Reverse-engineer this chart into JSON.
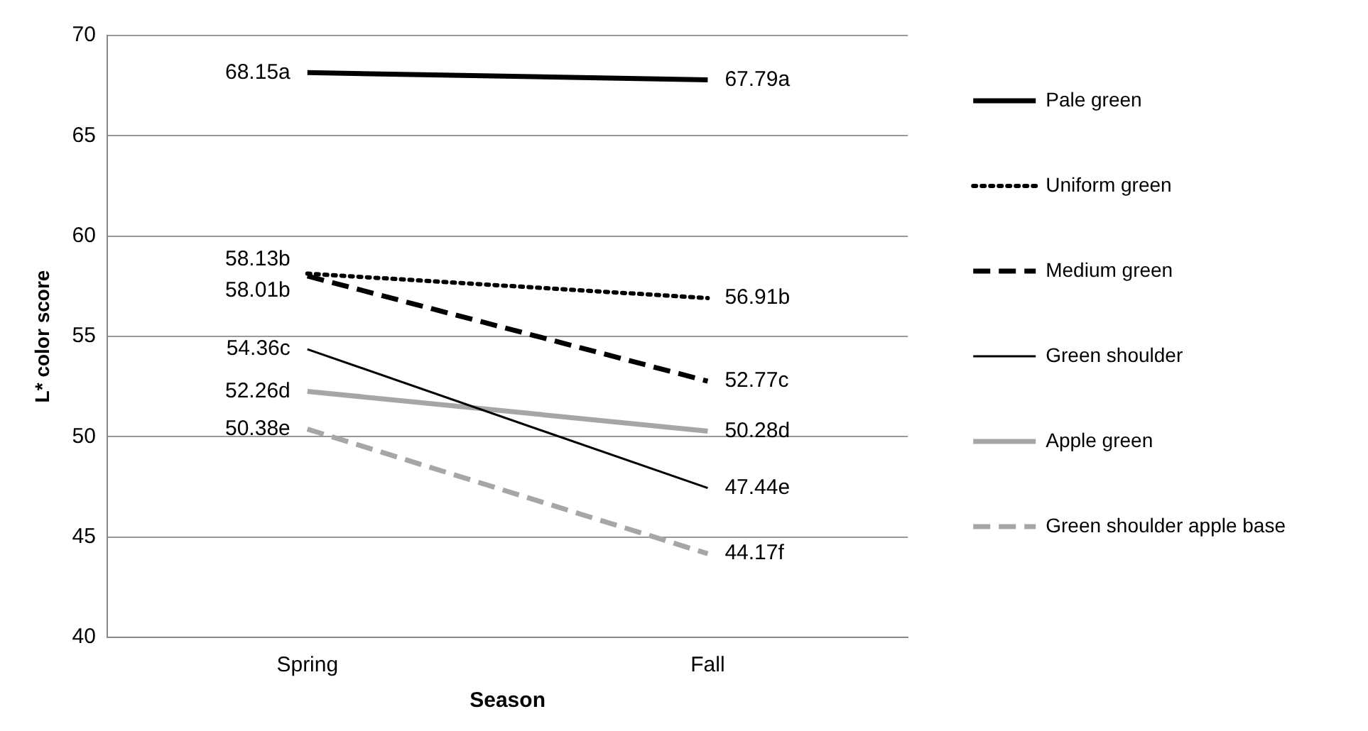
{
  "chart_data": {
    "type": "line",
    "xlabel": "Season",
    "ylabel": "L* color score",
    "categories": [
      "Spring",
      "Fall"
    ],
    "ylim": [
      40,
      70
    ],
    "yticks": [
      40,
      45,
      50,
      55,
      60,
      65,
      70
    ],
    "grid": "y",
    "legend": "right",
    "marker": "none",
    "series": [
      {
        "name": "Pale green",
        "color": "#000000",
        "line_style": "solid",
        "values": [
          68.15,
          67.79
        ],
        "value_labels": [
          "68.15a",
          "67.79a"
        ]
      },
      {
        "name": "Uniform green",
        "color": "#000000",
        "line_style": "dotted",
        "values": [
          58.13,
          56.91
        ],
        "value_labels": [
          "58.13b",
          "56.91b"
        ]
      },
      {
        "name": "Medium green",
        "color": "#000000",
        "line_style": "dashed",
        "values": [
          58.01,
          52.77
        ],
        "value_labels": [
          "58.01b",
          "52.77c"
        ]
      },
      {
        "name": "Green shoulder",
        "color": "#000000",
        "line_style": "solid",
        "values": [
          54.36,
          47.44
        ],
        "value_labels": [
          "54.36c",
          "47.44e"
        ]
      },
      {
        "name": "Apple green",
        "color": "#a6a6a6",
        "line_style": "solid",
        "values": [
          52.26,
          50.28
        ],
        "value_labels": [
          "52.26d",
          "50.28d"
        ]
      },
      {
        "name": "Green shoulder apple base",
        "color": "#a6a6a6",
        "line_style": "dashed",
        "values": [
          50.38,
          44.17
        ],
        "value_labels": [
          "50.38e",
          "44.17f"
        ]
      }
    ]
  }
}
